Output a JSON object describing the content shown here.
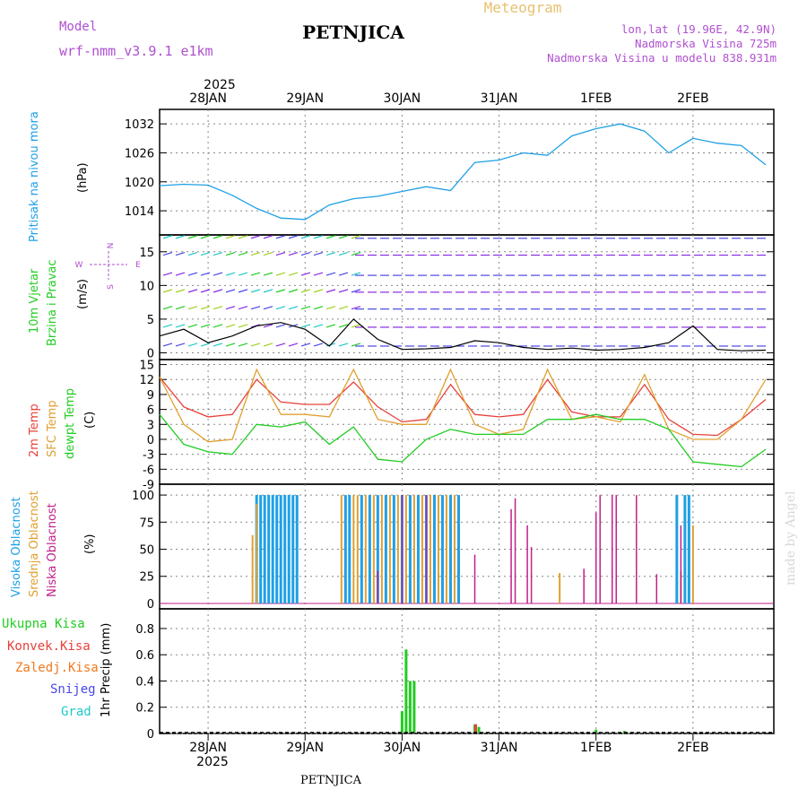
{
  "header": {
    "model_label": "Model",
    "model_name": "wrf-nmm_v3.9.1 e1km",
    "station": "PETNJICA",
    "title": "Meteogram",
    "lonlat": "lon,lat (19.96E, 42.9N)",
    "altitude": "Nadmorska Visina 725m",
    "model_altitude": "Nadmorska Visina u modelu 838.931m",
    "watermark": "made by Angel",
    "footer": "PETNJICA"
  },
  "time_axis": {
    "top_year": "2025",
    "bottom_year": "2025",
    "day_labels": [
      "28JAN",
      "29JAN",
      "30JAN",
      "31JAN",
      "1FEB",
      "2FEB"
    ]
  },
  "panel_labels": {
    "pressure": [
      "Pritisak na nivou mora"
    ],
    "pressure_unit": "(hPa)",
    "wind": [
      "10m Vjetar",
      "Brzina i Pravac"
    ],
    "wind_unit": "(m/s)",
    "wind_compass": {
      "n": "N",
      "s": "S",
      "e": "E",
      "w": "W"
    },
    "temp": [
      "2m Temp",
      "SFC Temp",
      "dewpt Temp"
    ],
    "temp_unit": "(C)",
    "cloud": [
      "Visoka Oblacnost",
      "Srednja Oblacnost",
      "Niska Oblacnost"
    ],
    "cloud_unit": "(%)",
    "precip_legend": [
      "Ukupna Kisa",
      "Konvek.Kisa",
      "Zaledj.Kisa",
      "Snijeg",
      "Grad"
    ],
    "precip_unit": "1hr Precip (mm)"
  },
  "colors": {
    "pressure": "#1ea0e6",
    "temp2m": "#e8403a",
    "sfc": "#e0a030",
    "dew": "#22cc22",
    "high_cloud": "#1ea0e6",
    "mid_cloud": "#e0a030",
    "low_cloud": "#c0208a",
    "total_rain": "#22cc22",
    "convective": "#e8403a",
    "freezing": "#f07a20",
    "snow": "#4848e8",
    "hail": "#22c8c8",
    "label_purple": "#b050d0",
    "title_gold": "#e8c070"
  },
  "chart_data": [
    {
      "type": "line",
      "panel": "pressure",
      "ylabel": "(hPa)",
      "yticks": [
        1014,
        1020,
        1026,
        1032
      ],
      "ylim": [
        1009,
        1035
      ],
      "x": [
        "2025-01-27 12:00",
        "2025-01-27 18:00",
        "2025-01-28 00:00",
        "2025-01-28 06:00",
        "2025-01-28 12:00",
        "2025-01-28 18:00",
        "2025-01-29 00:00",
        "2025-01-29 06:00",
        "2025-01-29 12:00",
        "2025-01-29 18:00",
        "2025-01-30 00:00",
        "2025-01-30 06:00",
        "2025-01-30 12:00",
        "2025-01-30 18:00",
        "2025-01-31 00:00",
        "2025-01-31 06:00",
        "2025-01-31 12:00",
        "2025-01-31 18:00",
        "2025-02-01 00:00",
        "2025-02-01 06:00",
        "2025-02-01 12:00",
        "2025-02-01 18:00",
        "2025-02-02 00:00",
        "2025-02-02 06:00",
        "2025-02-02 12:00",
        "2025-02-02 18:00"
      ],
      "values": [
        1019.2,
        1019.5,
        1019.3,
        1017.2,
        1014.5,
        1012.5,
        1012.2,
        1015.2,
        1016.5,
        1017.0,
        1018.0,
        1019.0,
        1018.2,
        1024.0,
        1024.5,
        1026.0,
        1025.5,
        1029.5,
        1031.0,
        1032.0,
        1030.5,
        1026.0,
        1029.0,
        1028.0,
        1027.5,
        1023.5
      ]
    },
    {
      "type": "line",
      "panel": "wind",
      "ylabel": "(m/s)",
      "yticks": [
        0,
        5,
        10,
        15
      ],
      "ylim": [
        -1,
        17.5
      ],
      "x": [
        "2025-01-27 12:00",
        "2025-01-27 18:00",
        "2025-01-28 00:00",
        "2025-01-28 06:00",
        "2025-01-28 12:00",
        "2025-01-28 18:00",
        "2025-01-29 00:00",
        "2025-01-29 06:00",
        "2025-01-29 12:00",
        "2025-01-29 18:00",
        "2025-01-30 00:00",
        "2025-01-30 06:00",
        "2025-01-30 12:00",
        "2025-01-30 18:00",
        "2025-01-31 00:00",
        "2025-01-31 06:00",
        "2025-01-31 12:00",
        "2025-01-31 18:00",
        "2025-02-01 00:00",
        "2025-02-01 06:00",
        "2025-02-01 12:00",
        "2025-02-01 18:00",
        "2025-02-02 00:00",
        "2025-02-02 06:00",
        "2025-02-02 12:00",
        "2025-02-02 18:00"
      ],
      "values": [
        2.5,
        3.5,
        1.5,
        2.5,
        4.0,
        4.5,
        3.5,
        1.0,
        5.0,
        2.0,
        0.5,
        0.6,
        0.8,
        1.8,
        1.5,
        0.8,
        0.5,
        0.7,
        0.4,
        0.5,
        0.8,
        1.5,
        4.0,
        0.5,
        0.3,
        0.4
      ]
    },
    {
      "type": "line",
      "panel": "temperature",
      "ylabel": "(C)",
      "yticks": [
        -9,
        -6,
        -3,
        0,
        3,
        6,
        9,
        12,
        15
      ],
      "ylim": [
        -9,
        16
      ],
      "x": [
        "2025-01-27 12:00",
        "2025-01-27 18:00",
        "2025-01-28 00:00",
        "2025-01-28 06:00",
        "2025-01-28 12:00",
        "2025-01-28 18:00",
        "2025-01-29 00:00",
        "2025-01-29 06:00",
        "2025-01-29 12:00",
        "2025-01-29 18:00",
        "2025-01-30 00:00",
        "2025-01-30 06:00",
        "2025-01-30 12:00",
        "2025-01-30 18:00",
        "2025-01-31 00:00",
        "2025-01-31 06:00",
        "2025-01-31 12:00",
        "2025-01-31 18:00",
        "2025-02-01 00:00",
        "2025-02-01 06:00",
        "2025-02-01 12:00",
        "2025-02-01 18:00",
        "2025-02-02 00:00",
        "2025-02-02 06:00",
        "2025-02-02 12:00",
        "2025-02-02 18:00"
      ],
      "series": [
        {
          "name": "2m Temp",
          "values": [
            12.5,
            6.5,
            4.5,
            5.0,
            12.0,
            7.5,
            7.0,
            7.0,
            11.5,
            6.5,
            3.5,
            4.0,
            11.0,
            5.0,
            4.5,
            5.0,
            12.0,
            5.5,
            4.5,
            4.5,
            11.0,
            4.0,
            1.0,
            0.8,
            4.0,
            8.0
          ]
        },
        {
          "name": "SFC Temp",
          "values": [
            12.5,
            3.0,
            -0.5,
            0.0,
            14.0,
            5.0,
            5.0,
            4.5,
            14.0,
            4.0,
            3.0,
            3.0,
            14.0,
            3.0,
            1.0,
            2.0,
            14.0,
            4.0,
            4.5,
            3.5,
            13.0,
            2.0,
            0.0,
            0.0,
            4.0,
            12.0
          ]
        },
        {
          "name": "dewpt Temp",
          "values": [
            5.0,
            -1.0,
            -2.5,
            -3.0,
            3.0,
            2.5,
            3.5,
            -1.0,
            2.5,
            -4.0,
            -4.5,
            0.0,
            2.0,
            1.0,
            1.0,
            1.0,
            4.0,
            4.0,
            5.0,
            4.0,
            4.0,
            2.0,
            -4.5,
            -5.0,
            -5.5,
            -2.0
          ]
        }
      ]
    },
    {
      "type": "bar",
      "panel": "cloud",
      "ylabel": "(%)",
      "yticks": [
        0,
        25,
        50,
        75,
        100
      ],
      "ylim": [
        -5,
        110
      ],
      "series": [
        {
          "name": "Visoka Oblacnost",
          "bars": [
            [
              "2025-01-28 12:00",
              100
            ],
            [
              "2025-01-28 13:00",
              100
            ],
            [
              "2025-01-28 14:00",
              100
            ],
            [
              "2025-01-28 15:00",
              100
            ],
            [
              "2025-01-28 16:00",
              100
            ],
            [
              "2025-01-28 17:00",
              100
            ],
            [
              "2025-01-28 18:00",
              100
            ],
            [
              "2025-01-28 19:00",
              100
            ],
            [
              "2025-01-28 20:00",
              100
            ],
            [
              "2025-01-28 21:00",
              100
            ],
            [
              "2025-01-28 22:00",
              100
            ],
            [
              "2025-01-29 10:00",
              100
            ],
            [
              "2025-01-29 11:00",
              100
            ],
            [
              "2025-01-29 14:00",
              100
            ],
            [
              "2025-01-29 16:00",
              100
            ],
            [
              "2025-01-29 18:00",
              100
            ],
            [
              "2025-01-29 20:00",
              100
            ],
            [
              "2025-01-29 22:00",
              100
            ],
            [
              "2025-01-30 00:00",
              100
            ],
            [
              "2025-01-30 02:00",
              100
            ],
            [
              "2025-01-30 04:00",
              100
            ],
            [
              "2025-01-30 06:00",
              100
            ],
            [
              "2025-01-30 08:00",
              100
            ],
            [
              "2025-01-30 10:00",
              100
            ],
            [
              "2025-01-30 12:00",
              100
            ],
            [
              "2025-01-30 14:00",
              100
            ],
            [
              "2025-02-01 20:00",
              100
            ],
            [
              "2025-02-01 22:00",
              100
            ],
            [
              "2025-02-01 23:00",
              100
            ]
          ]
        },
        {
          "name": "Srednja Oblacnost",
          "bars": [
            [
              "2025-01-28 11:00",
              63
            ],
            [
              "2025-01-28 12:00",
              92
            ],
            [
              "2025-01-29 09:00",
              100
            ],
            [
              "2025-01-29 12:00",
              100
            ],
            [
              "2025-01-29 13:00",
              100
            ],
            [
              "2025-01-29 15:00",
              100
            ],
            [
              "2025-01-29 17:00",
              100
            ],
            [
              "2025-01-29 19:00",
              100
            ],
            [
              "2025-01-29 21:00",
              100
            ],
            [
              "2025-01-29 23:00",
              100
            ],
            [
              "2025-01-30 01:00",
              100
            ],
            [
              "2025-01-30 03:00",
              100
            ],
            [
              "2025-01-30 05:00",
              100
            ],
            [
              "2025-01-30 07:00",
              100
            ],
            [
              "2025-01-30 09:00",
              100
            ],
            [
              "2025-01-30 11:00",
              100
            ],
            [
              "2025-01-30 13:00",
              100
            ],
            [
              "2025-01-31 15:00",
              28
            ],
            [
              "2025-02-01 21:00",
              30
            ],
            [
              "2025-02-02 00:00",
              72
            ]
          ]
        },
        {
          "name": "Niska Oblacnost",
          "bars": [
            [
              "2025-01-29 18:00",
              30
            ],
            [
              "2025-01-30 00:00",
              100
            ],
            [
              "2025-01-30 06:00",
              100
            ],
            [
              "2025-01-30 18:00",
              45
            ],
            [
              "2025-01-31 03:00",
              87
            ],
            [
              "2025-01-31 04:00",
              97
            ],
            [
              "2025-01-31 07:00",
              72
            ],
            [
              "2025-01-31 08:00",
              52
            ],
            [
              "2025-01-31 21:00",
              32
            ],
            [
              "2025-02-01 00:00",
              84
            ],
            [
              "2025-02-01 01:00",
              100
            ],
            [
              "2025-02-01 04:00",
              100
            ],
            [
              "2025-02-01 05:00",
              100
            ],
            [
              "2025-02-01 10:00",
              100
            ],
            [
              "2025-02-01 15:00",
              27
            ],
            [
              "2025-02-01 21:00",
              72
            ]
          ]
        }
      ]
    },
    {
      "type": "bar",
      "panel": "precipitation",
      "ylabel": "1hr Precip (mm)",
      "yticks": [
        0,
        0.2,
        0.4,
        0.6,
        0.8
      ],
      "ylim": [
        0,
        0.95
      ],
      "series": [
        {
          "name": "Ukupna Kisa",
          "bars": [
            [
              "2025-01-30 00:00",
              0.17
            ],
            [
              "2025-01-30 01:00",
              0.64
            ],
            [
              "2025-01-30 02:00",
              0.4
            ],
            [
              "2025-01-30 03:00",
              0.4
            ],
            [
              "2025-01-30 18:00",
              0.07
            ],
            [
              "2025-01-30 19:00",
              0.05
            ],
            [
              "2025-02-01 00:00",
              0.03
            ],
            [
              "2025-02-01 07:00",
              0.02
            ]
          ]
        },
        {
          "name": "Konvek.Kisa",
          "bars": [
            [
              "2025-01-30 18:00",
              0.07
            ]
          ]
        }
      ]
    }
  ]
}
